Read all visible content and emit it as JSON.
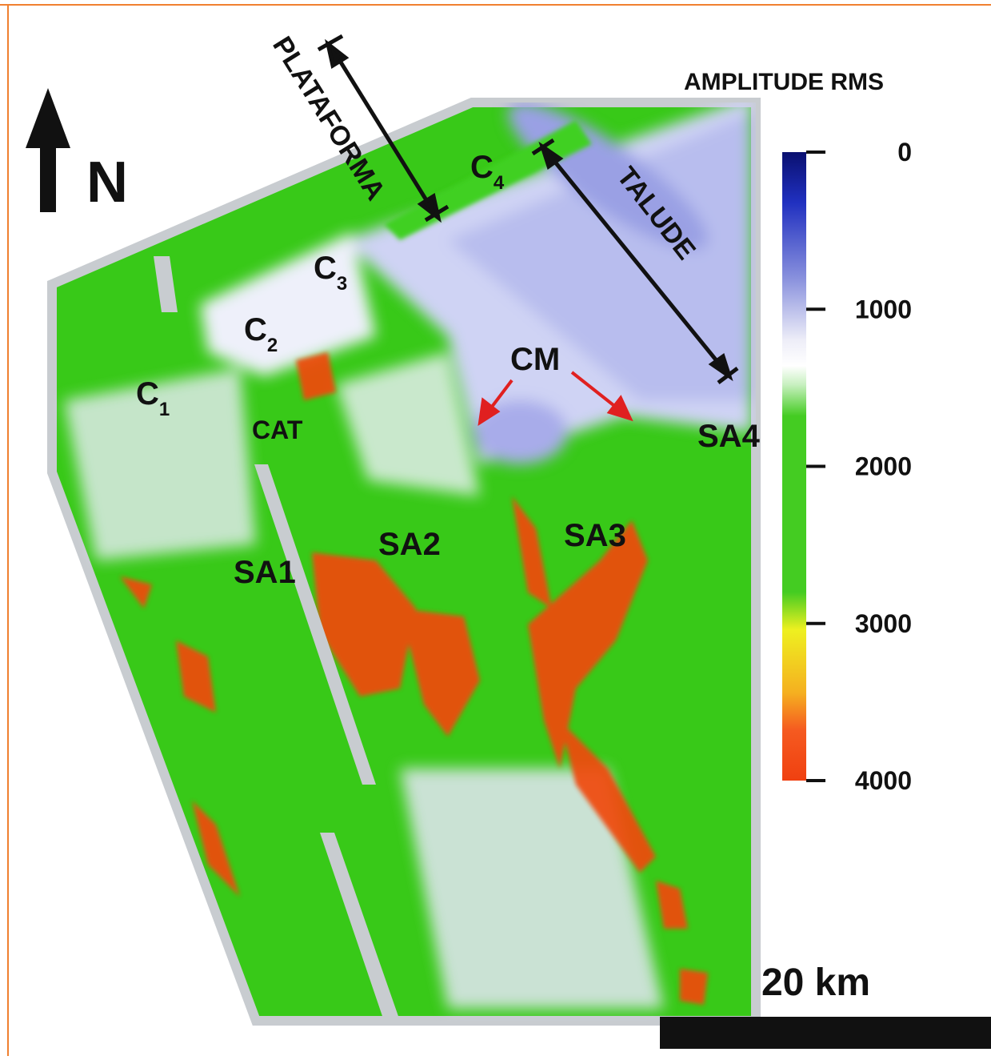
{
  "north": "N",
  "scale_bar": "20 km",
  "colorbar": {
    "title": "AMPLITUDE RMS",
    "range": [
      0,
      4000
    ],
    "ticks": [
      0,
      1000,
      2000,
      3000,
      4000
    ]
  },
  "zones": {
    "platform": "PLATAFORMA",
    "slope": "TALUDE"
  },
  "channels": [
    {
      "letter": "C",
      "sub": "1"
    },
    {
      "letter": "C",
      "sub": "2"
    },
    {
      "letter": "C",
      "sub": "3"
    },
    {
      "letter": "C",
      "sub": "4"
    }
  ],
  "areas": [
    "CAT",
    "SA1",
    "SA2",
    "SA3",
    "SA4"
  ],
  "cm": "CM"
}
